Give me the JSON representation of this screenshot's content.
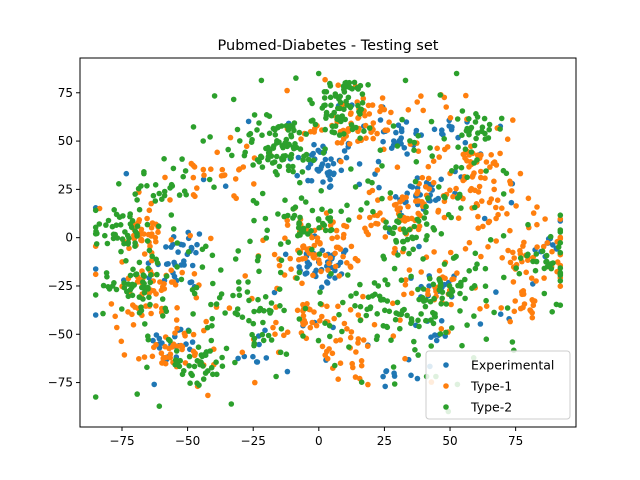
{
  "chart_data": {
    "type": "scatter",
    "title": "Pubmed-Diabetes - Testing set",
    "xlabel": "",
    "ylabel": "",
    "xlim": [
      -91,
      98
    ],
    "ylim": [
      -98,
      93
    ],
    "xticks": [
      -75,
      -50,
      -25,
      0,
      25,
      50,
      75
    ],
    "yticks": [
      -75,
      -50,
      -25,
      0,
      25,
      50,
      75
    ],
    "xtick_labels": [
      "−75",
      "−50",
      "−25",
      "0",
      "25",
      "50",
      "75"
    ],
    "ytick_labels": [
      "−75",
      "−50",
      "−25",
      "0",
      "25",
      "50",
      "75"
    ],
    "grid": false,
    "legend_position": "lower right",
    "series": [
      {
        "name": "Experimental",
        "color": "#1f77b4",
        "clusters": [
          {
            "cx": 2,
            "cy": 38,
            "r": 7,
            "n": 40
          },
          {
            "cx": 2,
            "cy": -15,
            "r": 5,
            "n": 35
          },
          {
            "cx": 30,
            "cy": 52,
            "r": 5,
            "n": 25
          },
          {
            "cx": 38,
            "cy": 22,
            "r": 6,
            "n": 30
          },
          {
            "cx": -52,
            "cy": -15,
            "r": 6,
            "n": 20
          },
          {
            "cx": -52,
            "cy": -3,
            "r": 4,
            "n": 12
          },
          {
            "cx": -55,
            "cy": -55,
            "r": 5,
            "n": 18
          },
          {
            "cx": 45,
            "cy": -25,
            "r": 4,
            "n": 14
          },
          {
            "cx": 50,
            "cy": 55,
            "r": 4,
            "n": 10
          },
          {
            "cx": 87,
            "cy": -5,
            "r": 3,
            "n": 10
          },
          {
            "cx": 30,
            "cy": -70,
            "r": 3,
            "n": 6
          },
          {
            "cx": -25,
            "cy": -60,
            "r": 5,
            "n": 8
          },
          {
            "cx": 45,
            "cy": -50,
            "r": 3,
            "n": 6
          }
        ],
        "scatter_count": 60
      },
      {
        "name": "Type-1",
        "color": "#ff7f0e",
        "clusters": [
          {
            "cx": 0,
            "cy": -5,
            "r": 8,
            "n": 70
          },
          {
            "cx": 15,
            "cy": 58,
            "r": 8,
            "n": 50
          },
          {
            "cx": -65,
            "cy": -30,
            "r": 6,
            "n": 40
          },
          {
            "cx": -65,
            "cy": 0,
            "r": 5,
            "n": 30
          },
          {
            "cx": 32,
            "cy": 12,
            "r": 7,
            "n": 45
          },
          {
            "cx": 50,
            "cy": 25,
            "r": 8,
            "n": 35
          },
          {
            "cx": -55,
            "cy": -57,
            "r": 5,
            "n": 30
          },
          {
            "cx": 80,
            "cy": -10,
            "r": 5,
            "n": 25
          },
          {
            "cx": 45,
            "cy": -25,
            "r": 5,
            "n": 20
          },
          {
            "cx": -5,
            "cy": -45,
            "r": 6,
            "n": 30
          },
          {
            "cx": 60,
            "cy": 40,
            "r": 5,
            "n": 20
          },
          {
            "cx": 10,
            "cy": -60,
            "r": 8,
            "n": 25
          },
          {
            "cx": 80,
            "cy": -35,
            "r": 4,
            "n": 15
          },
          {
            "cx": -40,
            "cy": 35,
            "r": 8,
            "n": 20
          },
          {
            "cx": 70,
            "cy": 15,
            "r": 8,
            "n": 20
          }
        ],
        "scatter_count": 180
      },
      {
        "name": "Type-2",
        "color": "#2ca02c",
        "clusters": [
          {
            "cx": -15,
            "cy": 47,
            "r": 8,
            "n": 80
          },
          {
            "cx": 10,
            "cy": 72,
            "r": 5,
            "n": 40
          },
          {
            "cx": -75,
            "cy": 5,
            "r": 6,
            "n": 40
          },
          {
            "cx": -70,
            "cy": -25,
            "r": 6,
            "n": 40
          },
          {
            "cx": -45,
            "cy": -65,
            "r": 5,
            "n": 30
          },
          {
            "cx": -5,
            "cy": 10,
            "r": 8,
            "n": 40
          },
          {
            "cx": 35,
            "cy": 5,
            "r": 6,
            "n": 30
          },
          {
            "cx": 60,
            "cy": 55,
            "r": 5,
            "n": 25
          },
          {
            "cx": 50,
            "cy": -25,
            "r": 6,
            "n": 25
          },
          {
            "cx": -25,
            "cy": -35,
            "r": 10,
            "n": 40
          },
          {
            "cx": 5,
            "cy": 60,
            "r": 6,
            "n": 25
          },
          {
            "cx": -60,
            "cy": 25,
            "r": 6,
            "n": 20
          },
          {
            "cx": 85,
            "cy": -10,
            "r": 4,
            "n": 15
          },
          {
            "cx": 20,
            "cy": -35,
            "r": 8,
            "n": 30
          },
          {
            "cx": 40,
            "cy": -40,
            "r": 6,
            "n": 20
          }
        ],
        "scatter_count": 280
      }
    ]
  }
}
